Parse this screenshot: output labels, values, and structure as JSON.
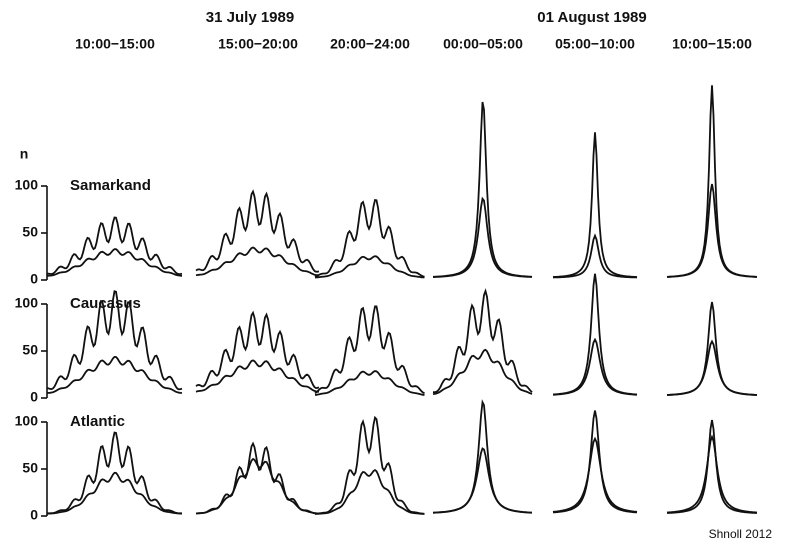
{
  "figure": {
    "dates": [
      "31 July 1989",
      "01 August 1989"
    ],
    "periods": [
      "10:00−15:00",
      "15:00−20:00",
      "20:00−24:00",
      "00:00−05:00",
      "05:00−10:00",
      "10:00−15:00"
    ],
    "y_label": "n",
    "rows": [
      {
        "site": "Samarkand",
        "yticks": [
          0,
          50,
          100
        ]
      },
      {
        "site": "Caucasus",
        "yticks": [
          0,
          50,
          100
        ]
      },
      {
        "site": "Atlantic",
        "yticks": [
          0,
          50,
          100
        ]
      }
    ],
    "credit": "Shnoll 2012"
  }
}
